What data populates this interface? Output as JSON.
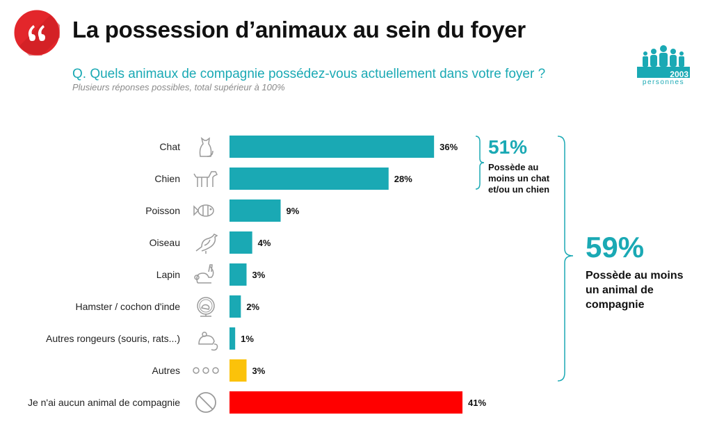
{
  "header": {
    "title": "La possession d’animaux au sein du foyer",
    "question": "Q. Quels animaux de compagnie possédez-vous actuellement dans votre foyer ?",
    "note": "Plusieurs réponses possibles, total supérieur à 100%",
    "quote_icon": "quote-icon"
  },
  "sample": {
    "count": "2003",
    "label": "personnes",
    "icon": "people-icon"
  },
  "colors": {
    "teal": "#1aa9b4",
    "yellow": "#fbc20a",
    "red": "#ff0000",
    "icon_gray": "#9a9a9a",
    "logo_red": "#e3262b"
  },
  "chart_data": {
    "type": "bar",
    "orientation": "horizontal",
    "categories": [
      "Chat",
      "Chien",
      "Poisson",
      "Oiseau",
      "Lapin",
      "Hamster / cochon d'inde",
      "Autres rongeurs (souris, rats...)",
      "Autres",
      "Je n'ai aucun animal de compagnie"
    ],
    "values": [
      36,
      28,
      9,
      4,
      3,
      2,
      1,
      3,
      41
    ],
    "value_labels": [
      "36%",
      "28%",
      "9%",
      "4%",
      "3%",
      "2%",
      "1%",
      "3%",
      "41%"
    ],
    "bar_colors": [
      "#1aa9b4",
      "#1aa9b4",
      "#1aa9b4",
      "#1aa9b4",
      "#1aa9b4",
      "#1aa9b4",
      "#1aa9b4",
      "#fbc20a",
      "#ff0000"
    ],
    "icons": [
      "cat-icon",
      "dog-icon",
      "fish-icon",
      "bird-icon",
      "rabbit-icon",
      "hamster-wheel-icon",
      "mouse-icon",
      "dots-icon",
      "none-icon"
    ],
    "xlim": [
      0,
      41
    ],
    "grid": false,
    "legend": "none"
  },
  "summaries": [
    {
      "value": "51%",
      "text": "Possède au moins un chat et/ou un chien"
    },
    {
      "value": "59%",
      "text": "Possède au moins un animal de compagnie"
    }
  ]
}
